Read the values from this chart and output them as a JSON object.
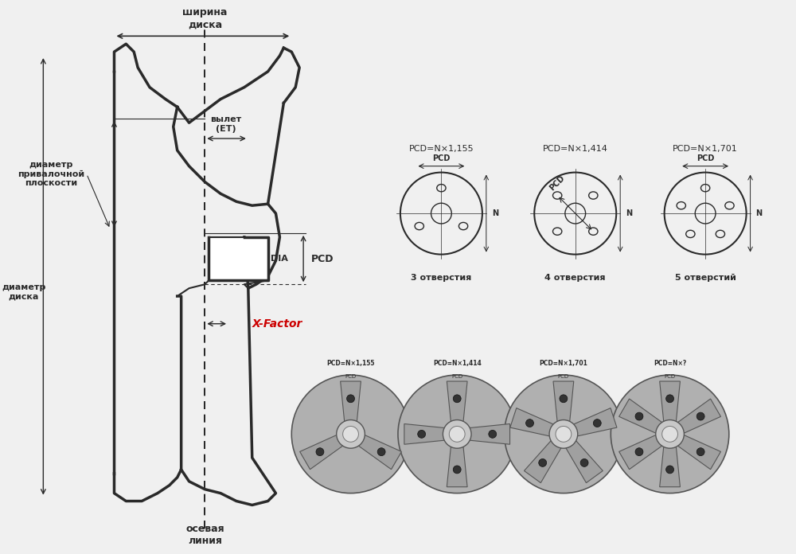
{
  "bg_color": "#f0f0f0",
  "text_color": "#1a1a1a",
  "dark_color": "#2a2a2a",
  "red_color": "#cc0000",
  "labels": {
    "shirina_diska": "ширина\nдиска",
    "vylet": "вылет\n(ЕТ)",
    "diametr_privalochnoy": "диаметр\nпривалочной\nплоскости",
    "diametr_diska": "диаметр\nдиска",
    "DIA": "DIA",
    "PCD": "PCD",
    "x_factor": "X-Factor",
    "osevaya_liniya": "осевая\nлиния",
    "pcd1_formula": "PCD=N×1,155",
    "pcd2_formula": "PCD=N×1,414",
    "pcd3_formula": "PCD=N×1,701",
    "pcd1_label": "PCD",
    "pcd2_label": "PCD",
    "pcd3_label": "PCD",
    "N_label": "N",
    "holes3": "3 отверстия",
    "holes4": "4 отверстия",
    "holes5": "5 отверстий",
    "hub_formulas": [
      "PCD=N×1,155",
      "PCD=N×1,414",
      "PCD=N×1,701",
      "PCD=N×?"
    ],
    "hub_n_spokes": [
      3,
      4,
      5,
      6
    ]
  }
}
